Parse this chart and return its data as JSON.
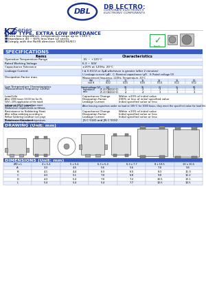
{
  "features": [
    "Extra low impedance, temperature range up to +105°C",
    "Impedance 40 ~ 60% less than LZ series",
    "Comply with the RoHS directive (2002/95/EC)"
  ],
  "dissipation_header": [
    "WV",
    "6.3",
    "10",
    "16",
    "25",
    "35",
    "50"
  ],
  "dissipation_values": [
    "tan δ",
    "0.22",
    "0.20",
    "0.16",
    "0.14",
    "0.12",
    "0.12"
  ],
  "low_temp_header": [
    "Rated voltage (V)",
    "6.3",
    "10",
    "16",
    "25",
    "35",
    "50"
  ],
  "load_life_items": [
    [
      "Capacitance Change",
      "Within ±20% of initial value"
    ],
    [
      "Dissipation Factor",
      "200% or less of initial specified value"
    ],
    [
      "Leakage Current",
      "Initial specified value or less"
    ]
  ],
  "soldering_items": [
    [
      "Capacitance Change",
      "Within ±10% of initial value"
    ],
    [
      "Dissipation Factor",
      "Initial specified value or less"
    ],
    [
      "Leakage Current",
      "Initial specified value or less"
    ]
  ],
  "reference_val": "JIS C 5141 and JIS C 5102",
  "dim_headers": [
    "ØD x L",
    "4 x 5.4",
    "5 x 5.4",
    "6.3 x 5.4",
    "6.3 x 7.7",
    "8 x 10.5",
    "10 x 10.5"
  ],
  "dim_rows": [
    [
      "A",
      "3.3",
      "4.5",
      "5.6",
      "5.6",
      "7.0",
      "9.5"
    ],
    [
      "B",
      "4.1",
      "4.4",
      "6.3",
      "6.0",
      "8.3",
      "11.0"
    ],
    [
      "C",
      "4.3",
      "5.1",
      "7.0",
      "6.8",
      "9.0",
      "12.2"
    ],
    [
      "D",
      "4.3",
      "5.4",
      "7.0",
      "7.2",
      "10.5",
      "13.1"
    ],
    [
      "L",
      "5.4",
      "5.4",
      "5.4",
      "7.7",
      "10.5",
      "10.5"
    ]
  ],
  "bg_color": "#ffffff",
  "blue_dark": "#1a2f8a",
  "blue_mid": "#3a5bbf",
  "blue_section": "#3a5bbf",
  "blue_header": "#5577dd",
  "rohs_green": "#22aa44",
  "table_alt": "#dde8ff",
  "table_white": "#ffffff",
  "grid_color": "#aabbcc",
  "text_black": "#111111",
  "text_white": "#ffffff"
}
